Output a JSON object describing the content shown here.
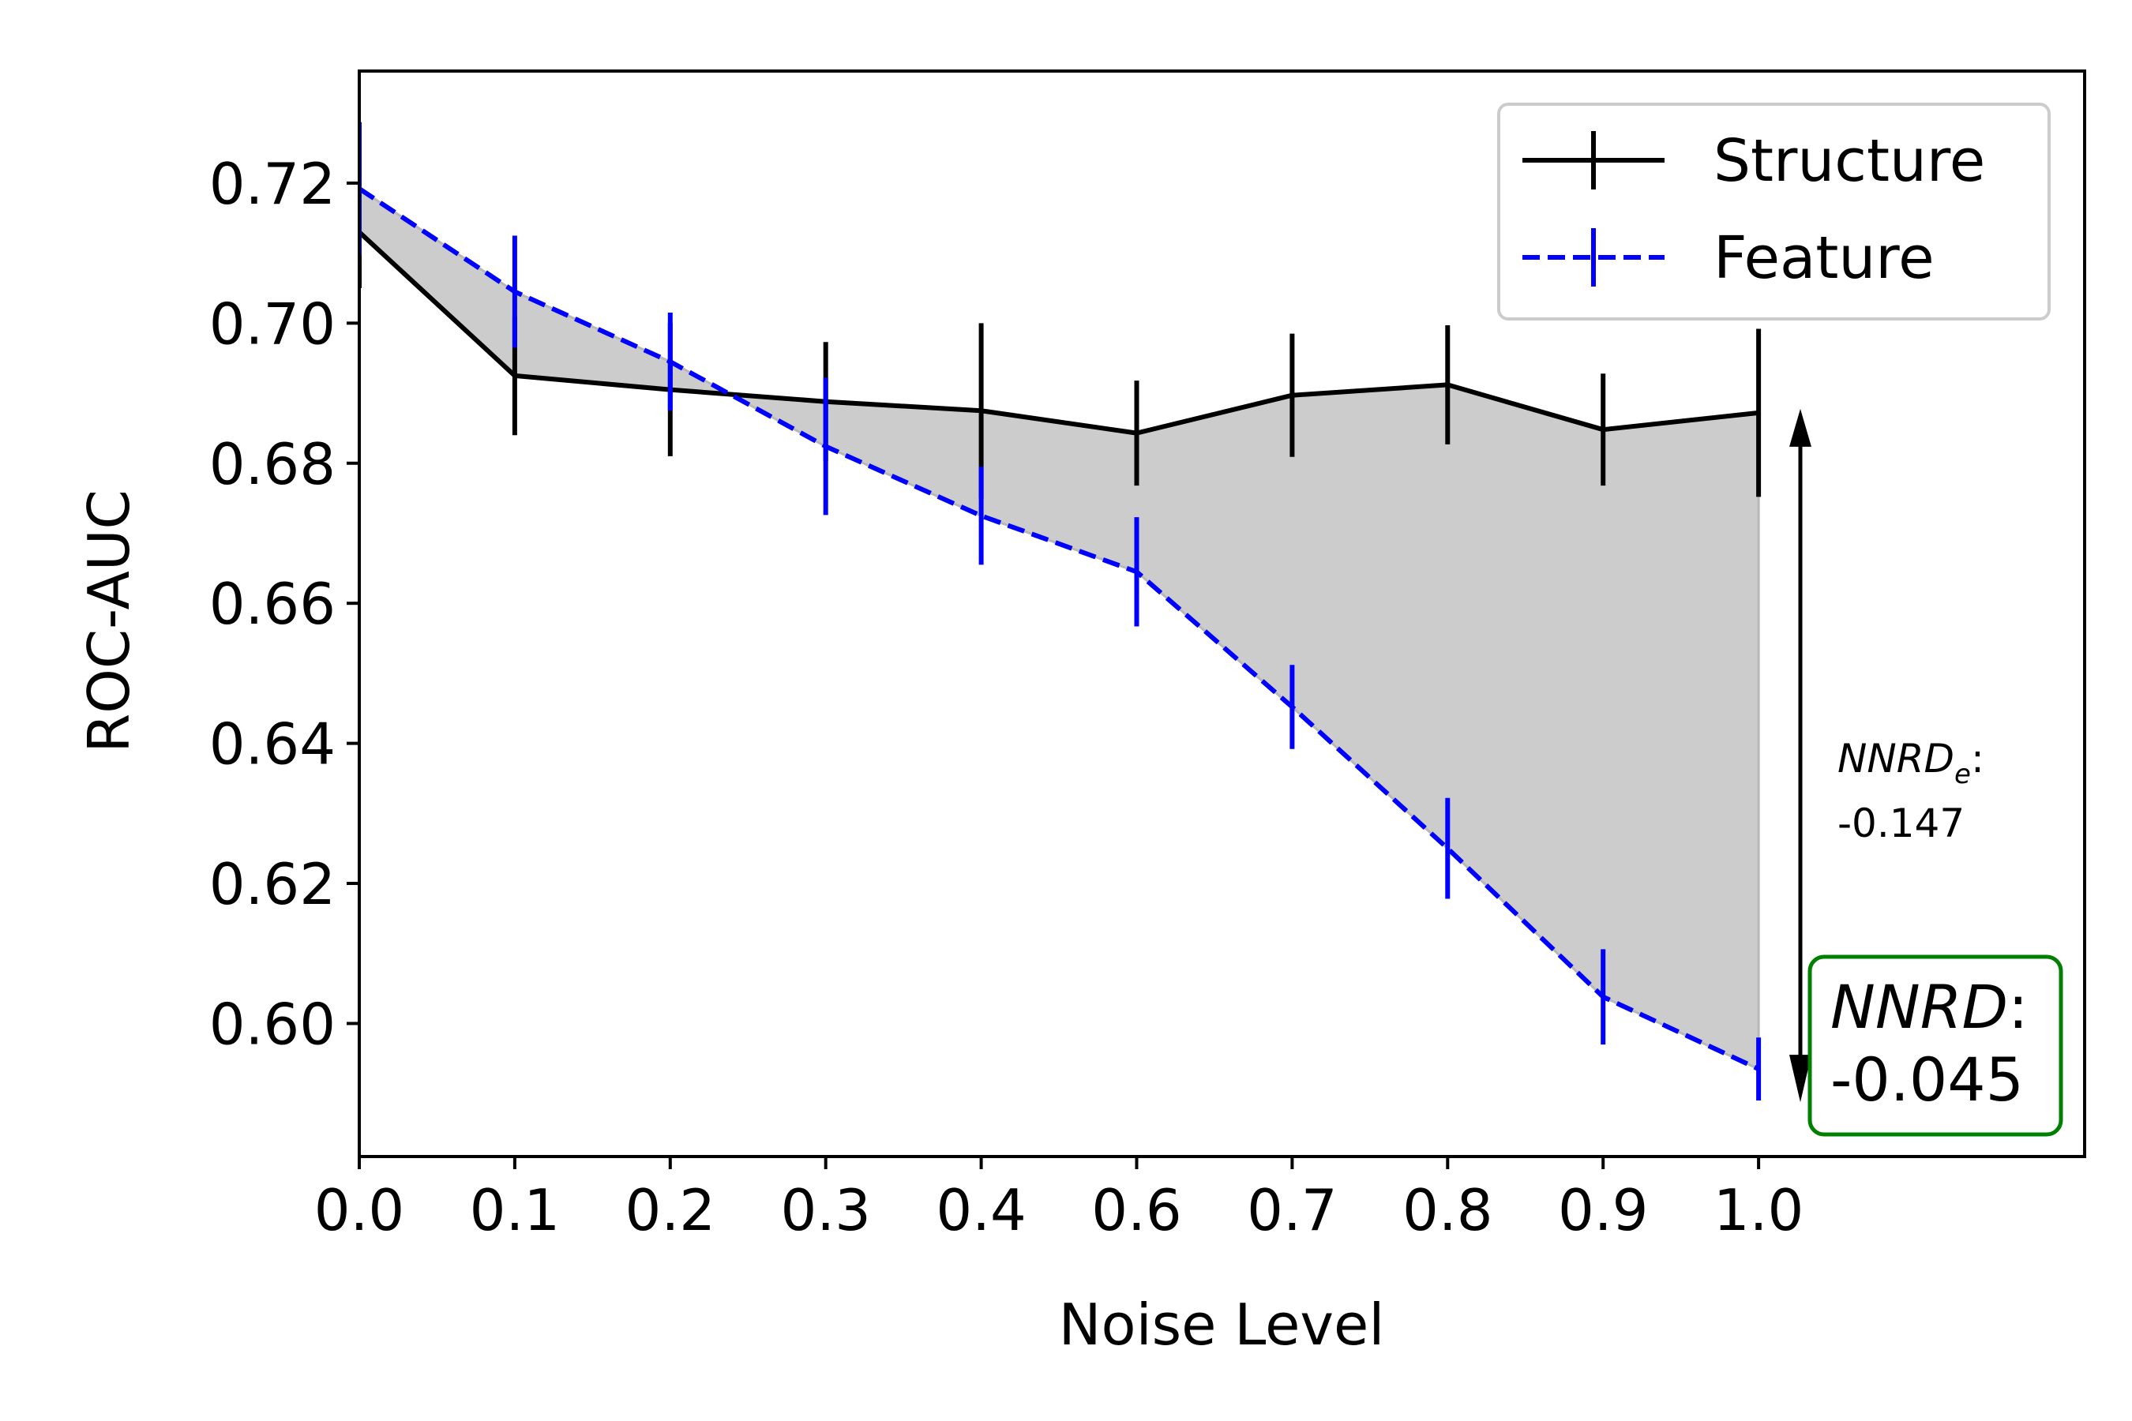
{
  "chart_data": {
    "type": "line",
    "xlabel": "Noise Level",
    "ylabel": "ROC-AUC",
    "x_tick_labels": [
      "0.0",
      "0.1",
      "0.2",
      "0.3",
      "0.4",
      "0.6",
      "0.7",
      "0.8",
      "0.9",
      "1.0"
    ],
    "ylim": [
      0.581,
      0.736
    ],
    "y_ticks": [
      0.6,
      0.62,
      0.64,
      0.66,
      0.68,
      0.7,
      0.72
    ],
    "y_tick_labels": [
      "0.60",
      "0.62",
      "0.64",
      "0.66",
      "0.68",
      "0.70",
      "0.72"
    ],
    "grid": false,
    "legend_position": "top-right",
    "series": [
      {
        "name": "Structure",
        "color": "#000000",
        "line_style": "solid",
        "values": [
          0.713,
          0.6925,
          0.6905,
          0.6888,
          0.6875,
          0.6843,
          0.6897,
          0.6912,
          0.6848,
          0.6872
        ],
        "errors": [
          0.008,
          0.0085,
          0.0095,
          0.0085,
          0.0125,
          0.0075,
          0.0088,
          0.0085,
          0.008,
          0.012
        ]
      },
      {
        "name": "Feature",
        "color": "#0000ff",
        "line_style": "dashed",
        "values": [
          0.7192,
          0.7045,
          0.6945,
          0.6824,
          0.6725,
          0.6645,
          0.6452,
          0.625,
          0.6038,
          0.5935
        ],
        "errors": [
          0.0095,
          0.008,
          0.007,
          0.0098,
          0.007,
          0.0078,
          0.006,
          0.0072,
          0.0068,
          0.0045
        ]
      }
    ],
    "shaded_region": {
      "between": [
        "Structure",
        "Feature"
      ],
      "color": "#cccccc"
    },
    "annotations": {
      "nnrd_e": {
        "label_main": "NNRD",
        "label_sub": "e",
        "label_suffix": ":",
        "value": "-0.147",
        "arrow_from": 0.6872,
        "arrow_to": 0.5935
      },
      "nnrd": {
        "label_main": "NNRD",
        "label_suffix": ":",
        "value": "-0.045",
        "box_color": "#008000"
      }
    }
  }
}
